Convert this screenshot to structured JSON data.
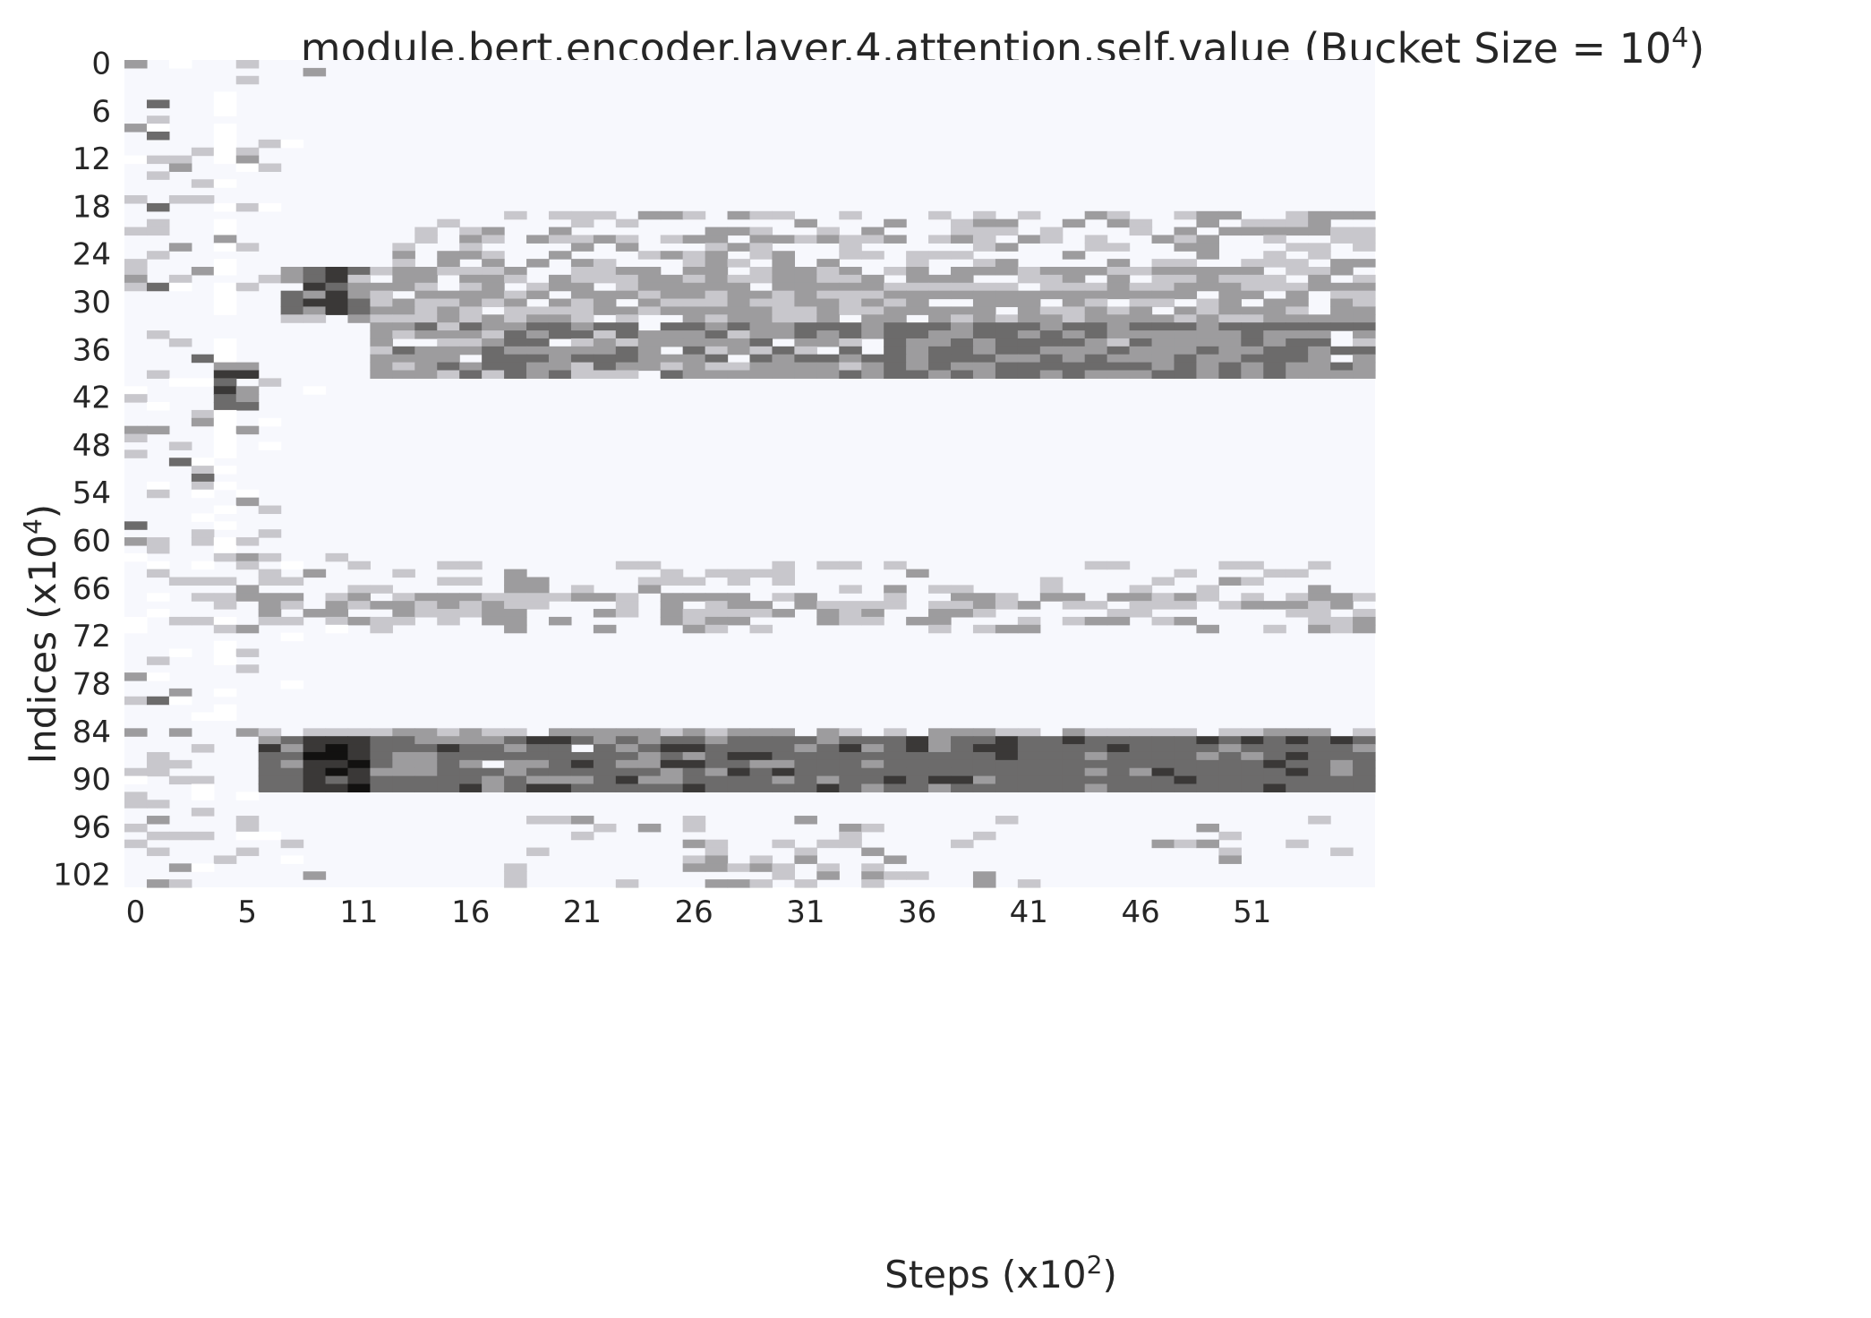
{
  "chart_data": {
    "type": "heatmap",
    "title": "module.bert.encoder.layer.4.attention.self.value (Bucket Size = 10",
    "title_superscript": "4",
    "title_suffix": ")",
    "xlabel": "Steps (x10",
    "xlabel_superscript": "2",
    "xlabel_suffix": ")",
    "ylabel": "Indices (x10",
    "ylabel_superscript": "4",
    "ylabel_suffix": ")",
    "x_ticks": [
      "0",
      "5",
      "11",
      "16",
      "21",
      "26",
      "31",
      "36",
      "41",
      "46",
      "51"
    ],
    "y_ticks": [
      "0",
      "6",
      "12",
      "18",
      "24",
      "30",
      "36",
      "42",
      "48",
      "54",
      "60",
      "66",
      "72",
      "78",
      "84",
      "90",
      "96",
      "102"
    ],
    "n_steps": 56,
    "n_indices": 104,
    "colormap": [
      "#f7f8fd",
      "#ffffff",
      "#c8c7cc",
      "#9d9c9e",
      "#6c6b6b",
      "#3a3837",
      "#121110"
    ],
    "value_scale": "0 = background, 1 = white, 2 = light gray, 3 = mid gray, 4 = dark gray, 5 = very dark, 6 = black",
    "bands": [
      {
        "rows": [
          19,
          39
        ],
        "steps": [
          7,
          55
        ],
        "mean_level": 2.6
      },
      {
        "rows": [
          64,
          72
        ],
        "steps": [
          4,
          55
        ],
        "mean_level": 2.2
      },
      {
        "rows": [
          84,
          91
        ],
        "steps": [
          5,
          55
        ],
        "mean_level": 3.7
      }
    ]
  }
}
